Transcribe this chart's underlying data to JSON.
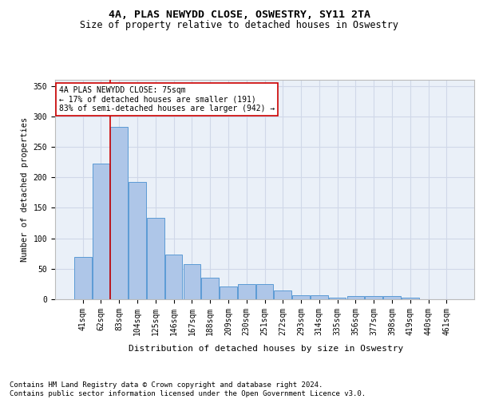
{
  "title1": "4A, PLAS NEWYDD CLOSE, OSWESTRY, SY11 2TA",
  "title2": "Size of property relative to detached houses in Oswestry",
  "xlabel": "Distribution of detached houses by size in Oswestry",
  "ylabel": "Number of detached properties",
  "categories": [
    "41sqm",
    "62sqm",
    "83sqm",
    "104sqm",
    "125sqm",
    "146sqm",
    "167sqm",
    "188sqm",
    "209sqm",
    "230sqm",
    "251sqm",
    "272sqm",
    "293sqm",
    "314sqm",
    "335sqm",
    "356sqm",
    "377sqm",
    "398sqm",
    "419sqm",
    "440sqm",
    "461sqm"
  ],
  "values": [
    70,
    222,
    283,
    193,
    133,
    73,
    57,
    36,
    21,
    25,
    25,
    14,
    6,
    6,
    3,
    5,
    5,
    5,
    2,
    0,
    0
  ],
  "bar_color": "#aec6e8",
  "bar_edge_color": "#5b9bd5",
  "vline_x_idx": 2,
  "vline_color": "#cc0000",
  "annotation_text": "4A PLAS NEWYDD CLOSE: 75sqm\n← 17% of detached houses are smaller (191)\n83% of semi-detached houses are larger (942) →",
  "annotation_box_color": "#ffffff",
  "annotation_box_edge": "#cc0000",
  "ylim": [
    0,
    360
  ],
  "yticks": [
    0,
    50,
    100,
    150,
    200,
    250,
    300,
    350
  ],
  "grid_color": "#d0d8e8",
  "bg_color": "#eaf0f8",
  "footer": "Contains HM Land Registry data © Crown copyright and database right 2024.\nContains public sector information licensed under the Open Government Licence v3.0.",
  "title1_fontsize": 9.5,
  "title2_fontsize": 8.5,
  "xlabel_fontsize": 8,
  "ylabel_fontsize": 7.5,
  "tick_fontsize": 7,
  "footer_fontsize": 6.5,
  "annotation_fontsize": 7
}
